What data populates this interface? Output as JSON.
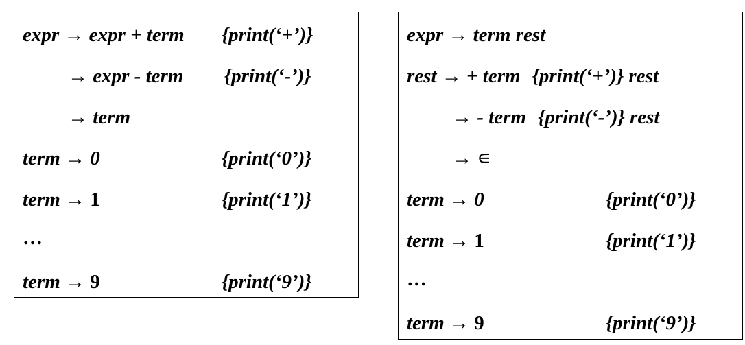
{
  "colors": {
    "text": "#000000",
    "border": "#000000",
    "background": "#ffffff"
  },
  "left_scheme": {
    "rules": [
      {
        "head": "expr",
        "arrow": "→",
        "body": "expr + term",
        "action": "{print(‘+’)}"
      },
      {
        "head": "",
        "arrow": "→",
        "body": "expr - term",
        "action": "{print(‘-’)}"
      },
      {
        "head": "",
        "arrow": "→",
        "body": "term",
        "action": ""
      },
      {
        "head": "term",
        "arrow": "→",
        "body": "0",
        "action": "{print(‘0’)}"
      },
      {
        "head": "term",
        "arrow": "→",
        "body": "1",
        "action": "{print(‘1’)}"
      },
      {
        "ellipsis": "…"
      },
      {
        "head": "term",
        "arrow": "→",
        "body": "9",
        "action": "{print(‘9’)}"
      }
    ]
  },
  "right_scheme": {
    "rules": [
      {
        "head": "expr",
        "arrow": "→",
        "body": "term rest"
      },
      {
        "head": "rest",
        "arrow": "→",
        "body_pre": "+ term",
        "action": "{print(‘+’)}",
        "body_post": "rest"
      },
      {
        "head": "",
        "arrow": "→",
        "body_pre": "- term",
        "action": "{print(‘-’)}",
        "body_post": "rest"
      },
      {
        "head": "",
        "arrow": "→",
        "body": "∊"
      },
      {
        "head": "term",
        "arrow": "→",
        "body": "0",
        "action": "{print(‘0’)}"
      },
      {
        "head": "term",
        "arrow": "→",
        "body": "1",
        "action": "{print(‘1’)}"
      },
      {
        "ellipsis": "…"
      },
      {
        "head": "term",
        "arrow": "→",
        "body": "9",
        "action": "{print(‘9’)}"
      }
    ]
  }
}
